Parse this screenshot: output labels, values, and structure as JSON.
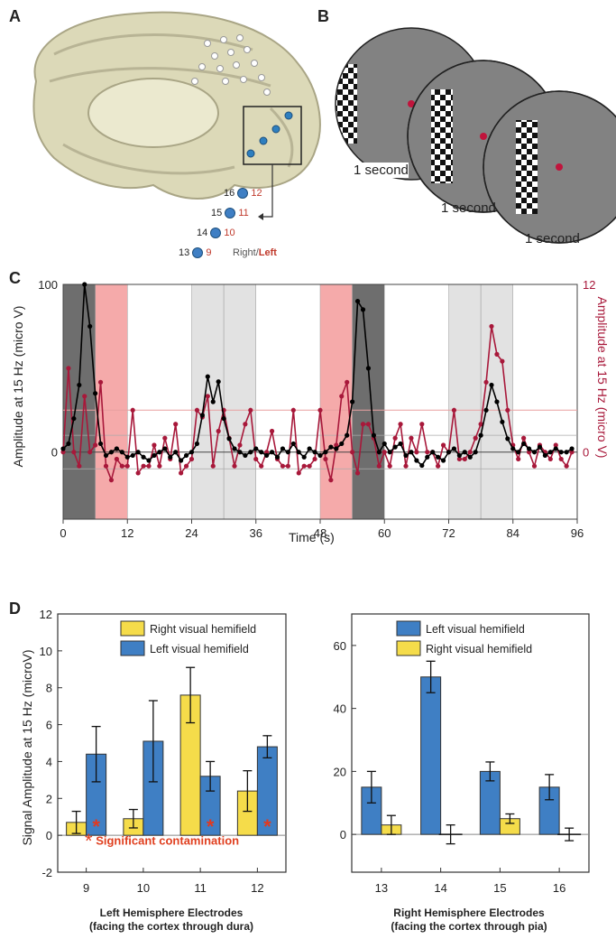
{
  "panels": {
    "a": "A",
    "b": "B",
    "c": "C",
    "d": "D"
  },
  "panel_a": {
    "electrodes": [
      {
        "right": "16",
        "left": "12"
      },
      {
        "right": "15",
        "left": "11"
      },
      {
        "right": "14",
        "left": "10"
      },
      {
        "right": "13",
        "left": "9"
      }
    ],
    "legend_right": "Right",
    "legend_sep": "/",
    "legend_left": "Left"
  },
  "panel_b": {
    "captions": [
      "1 second",
      "1 second",
      "1 second"
    ]
  },
  "colors": {
    "black": "#000000",
    "red": "#a8183a",
    "blue": "#3f7fc4",
    "yellow": "#f5dc4a",
    "pink": "#f5aaaa",
    "lightgray": "#e2e2e2",
    "darkgray": "#6e6e6e"
  },
  "chart_data": [
    {
      "type": "line",
      "xlabel": "Time (s)",
      "ylabel_left": "Amplitude at 15 Hz (micro V)",
      "ylabel_right": "Amplitude at 15 Hz (micro V)",
      "x_ticks": [
        "0",
        "12",
        "24",
        "36",
        "48",
        "60",
        "72",
        "84",
        "96"
      ],
      "y_ticks_left": [
        "100",
        "0"
      ],
      "y_ticks_right": [
        "12",
        "0"
      ],
      "xlim": [
        0,
        96
      ],
      "ylim_left": [
        -40,
        100
      ],
      "ylim_right": [
        -4.8,
        12
      ],
      "shaded_regions": [
        {
          "x0": 0,
          "x1": 6,
          "color": "darkgray"
        },
        {
          "x0": 6,
          "x1": 12,
          "color": "pink"
        },
        {
          "x0": 24,
          "x1": 30,
          "color": "lightgray"
        },
        {
          "x0": 30,
          "x1": 36,
          "color": "lightgray"
        },
        {
          "x0": 48,
          "x1": 54,
          "color": "pink"
        },
        {
          "x0": 54,
          "x1": 60,
          "color": "darkgray"
        },
        {
          "x0": 72,
          "x1": 78,
          "color": "lightgray"
        },
        {
          "x0": 78,
          "x1": 84,
          "color": "lightgray"
        }
      ],
      "series": [
        {
          "axis": "left",
          "color": "black",
          "x": [
            0,
            1,
            2,
            3,
            4,
            5,
            6,
            7,
            8,
            9,
            10,
            11,
            12,
            13,
            14,
            15,
            16,
            17,
            18,
            19,
            20,
            21,
            22,
            23,
            24,
            25,
            26,
            27,
            28,
            29,
            30,
            31,
            32,
            33,
            34,
            35,
            36,
            37,
            38,
            39,
            40,
            41,
            42,
            43,
            44,
            45,
            46,
            47,
            48,
            49,
            50,
            51,
            52,
            53,
            54,
            55,
            56,
            57,
            58,
            59,
            60,
            61,
            62,
            63,
            64,
            65,
            66,
            67,
            68,
            69,
            70,
            71,
            72,
            73,
            74,
            75,
            76,
            77,
            78,
            79,
            80,
            81,
            82,
            83,
            84,
            85,
            86,
            87,
            88,
            89,
            90,
            91,
            92,
            93,
            94,
            95
          ],
          "y": [
            2,
            5,
            20,
            40,
            100,
            75,
            35,
            5,
            -2,
            0,
            2,
            0,
            -3,
            -2,
            0,
            -3,
            -5,
            -2,
            0,
            2,
            -3,
            0,
            -5,
            -2,
            0,
            5,
            22,
            45,
            30,
            42,
            20,
            8,
            2,
            0,
            -2,
            0,
            2,
            0,
            -2,
            0,
            -3,
            2,
            0,
            5,
            0,
            -3,
            2,
            0,
            -2,
            0,
            3,
            2,
            5,
            10,
            30,
            90,
            85,
            50,
            10,
            0,
            5,
            0,
            3,
            5,
            -2,
            0,
            -5,
            -8,
            -3,
            0,
            -3,
            -5,
            0,
            2,
            -2,
            0,
            -3,
            0,
            10,
            25,
            40,
            30,
            18,
            8,
            2,
            0,
            5,
            2,
            0,
            3,
            -2,
            0,
            2,
            0,
            0,
            2
          ]
        },
        {
          "axis": "right",
          "color": "red",
          "x": [
            0,
            1,
            2,
            3,
            4,
            5,
            6,
            7,
            8,
            9,
            10,
            11,
            12,
            13,
            14,
            15,
            16,
            17,
            18,
            19,
            20,
            21,
            22,
            23,
            24,
            25,
            26,
            27,
            28,
            29,
            30,
            31,
            32,
            33,
            34,
            35,
            36,
            37,
            38,
            39,
            40,
            41,
            42,
            43,
            44,
            45,
            46,
            47,
            48,
            49,
            50,
            51,
            52,
            53,
            54,
            55,
            56,
            57,
            58,
            59,
            60,
            61,
            62,
            63,
            64,
            65,
            66,
            67,
            68,
            69,
            70,
            71,
            72,
            73,
            74,
            75,
            76,
            77,
            78,
            79,
            80,
            81,
            82,
            83,
            84,
            85,
            86,
            87,
            88,
            89,
            90,
            91,
            92,
            93,
            94,
            95
          ],
          "y": [
            0,
            6,
            0,
            -1,
            4,
            0,
            0.5,
            5,
            -1,
            -2,
            -0.5,
            -1,
            -1,
            3,
            -1.5,
            -1,
            -1,
            0.5,
            -1,
            1,
            -0.5,
            2,
            -1.5,
            -1,
            -0.5,
            3,
            2.5,
            4,
            -1,
            1.5,
            3,
            1,
            -1,
            0.5,
            2,
            3,
            -0.5,
            -1,
            0,
            1.5,
            -0.5,
            -1,
            -1,
            3,
            -1.5,
            -1,
            -1,
            -0.5,
            3,
            -0.5,
            -2,
            0.5,
            4,
            5,
            0,
            -1.5,
            2,
            2,
            1,
            -1,
            0,
            -1,
            1,
            2,
            -1,
            1,
            0,
            2,
            0,
            0,
            -1,
            0.5,
            0,
            3,
            -0.5,
            -0.5,
            0,
            1,
            2,
            5,
            9,
            7,
            6.5,
            3,
            0.5,
            -0.5,
            1,
            0,
            -1,
            0.5,
            0,
            -0.5,
            0.5,
            -0.5,
            -1,
            0
          ]
        }
      ]
    },
    {
      "type": "bar",
      "ylabel": "Signal Amplitude at 15 Hz (microV)",
      "categories": [
        "9",
        "10",
        "11",
        "12"
      ],
      "x_title_line1": "Left Hemisphere Electrodes",
      "x_title_line2": "(facing the cortex through dura)",
      "y_ticks": [
        "12",
        "10",
        "8",
        "6",
        "4",
        "2",
        "0",
        "-2"
      ],
      "ylim": [
        -2,
        12
      ],
      "series": [
        {
          "name": "Right visual hemifield",
          "color": "yellow",
          "values": [
            0.7,
            0.9,
            7.6,
            2.4
          ],
          "errors": [
            0.6,
            0.5,
            1.5,
            1.1
          ]
        },
        {
          "name": "Left visual hemifield",
          "color": "blue",
          "values": [
            4.4,
            5.1,
            3.2,
            4.8
          ],
          "errors": [
            1.5,
            2.2,
            0.8,
            0.6
          ]
        }
      ],
      "significant": [
        {
          "category": "9",
          "series": "Left visual hemifield"
        },
        {
          "category": "11",
          "series": "Left visual hemifield"
        },
        {
          "category": "12",
          "series": "Left visual hemifield"
        }
      ],
      "annotation_star": "*",
      "annotation": "Significant contamination",
      "legend_position": "top-right"
    },
    {
      "type": "bar",
      "categories": [
        "13",
        "14",
        "15",
        "16"
      ],
      "x_title_line1": "Right Hemisphere Electrodes",
      "x_title_line2": "(facing the cortex through pia)",
      "y_ticks": [
        "60",
        "40",
        "20",
        "0"
      ],
      "ylim": [
        -12,
        70
      ],
      "series": [
        {
          "name": "Left visual hemifield",
          "color": "blue",
          "values": [
            15,
            50,
            20,
            15
          ],
          "errors": [
            5,
            5,
            3,
            4
          ]
        },
        {
          "name": "Right visual hemifield",
          "color": "yellow",
          "values": [
            3,
            0,
            5,
            0
          ],
          "errors": [
            3,
            3,
            1.5,
            2
          ]
        }
      ],
      "legend_position": "top-right"
    }
  ]
}
